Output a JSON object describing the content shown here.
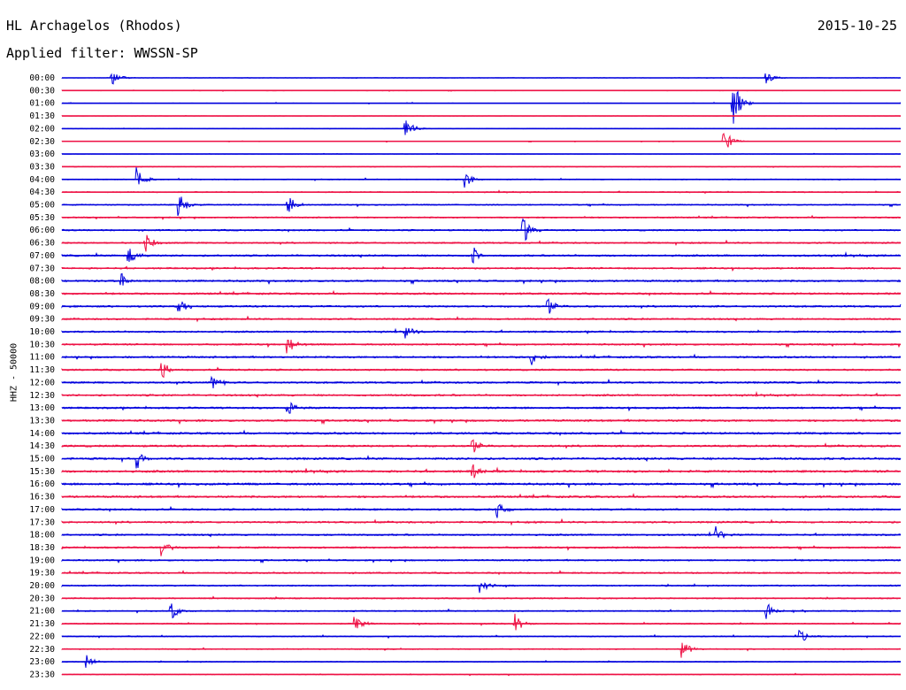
{
  "header": {
    "station": "HL Archagelos (Rhodos)",
    "date": "2015-10-25",
    "filter": "Applied filter: WWSSN-SP"
  },
  "chart_data": {
    "type": "line",
    "title": "HL Archagelos (Rhodos)",
    "ylabel": "HHZ - 50000",
    "trace_colors": [
      "#0000dd",
      "#ee1144"
    ],
    "row_labels": [
      "00:00",
      "00:30",
      "01:00",
      "01:30",
      "02:00",
      "02:30",
      "03:00",
      "03:30",
      "04:00",
      "04:30",
      "05:00",
      "05:30",
      "06:00",
      "06:30",
      "07:00",
      "07:30",
      "08:00",
      "08:30",
      "09:00",
      "09:30",
      "10:00",
      "10:30",
      "11:00",
      "11:30",
      "12:00",
      "12:30",
      "13:00",
      "13:30",
      "14:00",
      "14:30",
      "15:00",
      "15:30",
      "16:00",
      "16:30",
      "17:00",
      "17:30",
      "18:00",
      "18:30",
      "19:00",
      "19:30",
      "20:00",
      "20:30",
      "21:00",
      "21:30",
      "22:00",
      "22:30",
      "23:00",
      "23:30"
    ],
    "row_noise": [
      0.12,
      0.15,
      0.2,
      0.12,
      0.12,
      0.18,
      0.15,
      0.22,
      0.3,
      0.35,
      0.4,
      0.45,
      0.5,
      0.5,
      0.6,
      0.55,
      0.6,
      0.6,
      0.6,
      0.55,
      0.55,
      0.55,
      0.6,
      0.55,
      0.6,
      0.6,
      0.6,
      0.65,
      0.65,
      0.65,
      0.7,
      0.7,
      0.7,
      0.65,
      0.6,
      0.6,
      0.55,
      0.55,
      0.5,
      0.5,
      0.45,
      0.45,
      0.4,
      0.4,
      0.35,
      0.35,
      0.3,
      0.25
    ],
    "events": [
      {
        "row": 0,
        "t": 0.06,
        "amp": 1.2
      },
      {
        "row": 0,
        "t": 0.84,
        "amp": 0.8
      },
      {
        "row": 2,
        "t": 0.8,
        "amp": 3.2
      },
      {
        "row": 4,
        "t": 0.41,
        "amp": 1.4
      },
      {
        "row": 5,
        "t": 0.79,
        "amp": 1.5
      },
      {
        "row": 8,
        "t": 0.09,
        "amp": 1.5
      },
      {
        "row": 8,
        "t": 0.48,
        "amp": 1.3
      },
      {
        "row": 10,
        "t": 0.14,
        "amp": 1.5
      },
      {
        "row": 10,
        "t": 0.27,
        "amp": 1.3
      },
      {
        "row": 12,
        "t": 0.55,
        "amp": 1.8
      },
      {
        "row": 13,
        "t": 0.1,
        "amp": 1.3
      },
      {
        "row": 14,
        "t": 0.08,
        "amp": 1.2
      },
      {
        "row": 14,
        "t": 0.49,
        "amp": 1.2
      },
      {
        "row": 16,
        "t": 0.07,
        "amp": 1.2
      },
      {
        "row": 18,
        "t": 0.14,
        "amp": 1.1
      },
      {
        "row": 18,
        "t": 0.58,
        "amp": 1.1
      },
      {
        "row": 20,
        "t": 0.41,
        "amp": 1.0
      },
      {
        "row": 21,
        "t": 0.27,
        "amp": 1.1
      },
      {
        "row": 22,
        "t": 0.56,
        "amp": 1.1
      },
      {
        "row": 23,
        "t": 0.12,
        "amp": 1.0
      },
      {
        "row": 24,
        "t": 0.18,
        "amp": 1.1
      },
      {
        "row": 26,
        "t": 0.27,
        "amp": 1.1
      },
      {
        "row": 29,
        "t": 0.49,
        "amp": 1.0
      },
      {
        "row": 30,
        "t": 0.09,
        "amp": 1.2
      },
      {
        "row": 31,
        "t": 0.49,
        "amp": 1.1
      },
      {
        "row": 34,
        "t": 0.52,
        "amp": 1.0
      },
      {
        "row": 36,
        "t": 0.78,
        "amp": 1.1
      },
      {
        "row": 37,
        "t": 0.12,
        "amp": 1.0
      },
      {
        "row": 40,
        "t": 0.5,
        "amp": 1.0
      },
      {
        "row": 42,
        "t": 0.13,
        "amp": 1.2
      },
      {
        "row": 42,
        "t": 0.84,
        "amp": 1.3
      },
      {
        "row": 43,
        "t": 0.35,
        "amp": 1.0
      },
      {
        "row": 43,
        "t": 0.54,
        "amp": 1.2
      },
      {
        "row": 44,
        "t": 0.88,
        "amp": 0.9
      },
      {
        "row": 45,
        "t": 0.74,
        "amp": 1.2
      },
      {
        "row": 46,
        "t": 0.03,
        "amp": 0.9
      }
    ]
  }
}
